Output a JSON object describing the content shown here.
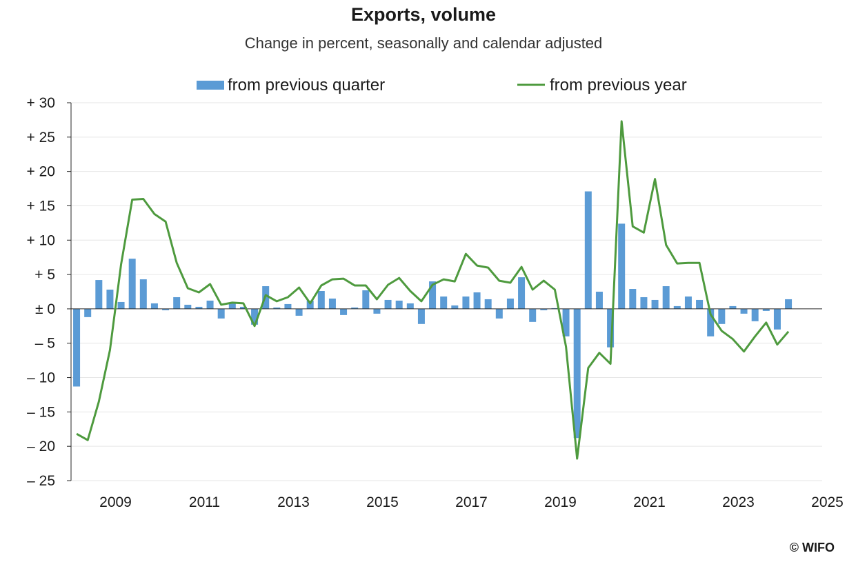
{
  "title": "Exports, volume",
  "subtitle": "Change in percent, seasonally and calendar adjusted",
  "credit": "© WIFO",
  "colors": {
    "bars": "#5b9bd5",
    "line": "#4e9a3e",
    "grid": "#e6e6e6",
    "axis": "#262626"
  },
  "chart_data": {
    "type": "bar",
    "title": "Exports, volume",
    "subtitle": "Change in percent, seasonally and calendar adjusted",
    "ylim": [
      -25,
      30
    ],
    "yticks": [
      {
        "value": 30,
        "label": "+ 30"
      },
      {
        "value": 25,
        "label": "+ 25"
      },
      {
        "value": 20,
        "label": "+ 20"
      },
      {
        "value": 15,
        "label": "+ 15"
      },
      {
        "value": 10,
        "label": "+ 10"
      },
      {
        "value": 5,
        "label": "+ 5"
      },
      {
        "value": 0,
        "label": "± 0"
      },
      {
        "value": -5,
        "label": "– 5"
      },
      {
        "value": -10,
        "label": "– 10"
      },
      {
        "value": -15,
        "label": "– 15"
      },
      {
        "value": -20,
        "label": "– 20"
      },
      {
        "value": -25,
        "label": "– 25"
      }
    ],
    "xticks": [
      "2009",
      "2011",
      "2013",
      "2015",
      "2017",
      "2019",
      "2021",
      "2023",
      "2025"
    ],
    "start_year": 2008,
    "start_quarter": 3,
    "legend": {
      "position": "top",
      "bar_label": "from previous quarter",
      "line_label": "from previous year"
    },
    "series": [
      {
        "name": "from previous quarter",
        "type": "bar",
        "values": [
          -11.3,
          -1.2,
          4.2,
          2.8,
          1.0,
          7.3,
          4.3,
          0.8,
          -0.2,
          1.7,
          0.6,
          0.3,
          1.2,
          -1.4,
          0.8,
          0.3,
          -2.3,
          3.3,
          0.2,
          0.7,
          -1.0,
          1.2,
          2.6,
          1.5,
          -0.9,
          0.2,
          2.7,
          -0.7,
          1.3,
          1.2,
          0.8,
          -2.2,
          4.0,
          1.8,
          0.5,
          1.8,
          2.4,
          1.4,
          -1.4,
          1.5,
          4.6,
          -1.9,
          -0.2,
          0.1,
          -4.0,
          -18.8,
          17.1,
          2.5,
          -5.6,
          12.4,
          2.9,
          1.7,
          1.3,
          3.3,
          0.4,
          1.8,
          1.3,
          -4.0,
          -2.2,
          0.4,
          -0.7,
          -1.8,
          -0.3,
          -3.0,
          1.4
        ]
      },
      {
        "name": "from previous year",
        "type": "line",
        "values": [
          -18.2,
          -19.1,
          -13.5,
          -6.0,
          6.5,
          15.9,
          16.0,
          13.8,
          12.7,
          6.7,
          3.0,
          2.4,
          3.6,
          0.6,
          0.9,
          0.8,
          -2.5,
          2.0,
          1.1,
          1.7,
          3.1,
          0.8,
          3.4,
          4.3,
          4.4,
          3.4,
          3.4,
          1.4,
          3.5,
          4.5,
          2.6,
          1.1,
          3.5,
          4.3,
          4.0,
          8.0,
          6.3,
          6.0,
          4.1,
          3.8,
          6.1,
          2.8,
          4.1,
          2.8,
          -5.5,
          -21.8,
          -8.6,
          -6.4,
          -8.0,
          27.3,
          12.0,
          11.1,
          18.9,
          9.3,
          6.6,
          6.7,
          6.7,
          -0.8,
          -3.2,
          -4.4,
          -6.2,
          -4.0,
          -2.0,
          -5.2,
          -3.3
        ]
      }
    ]
  }
}
